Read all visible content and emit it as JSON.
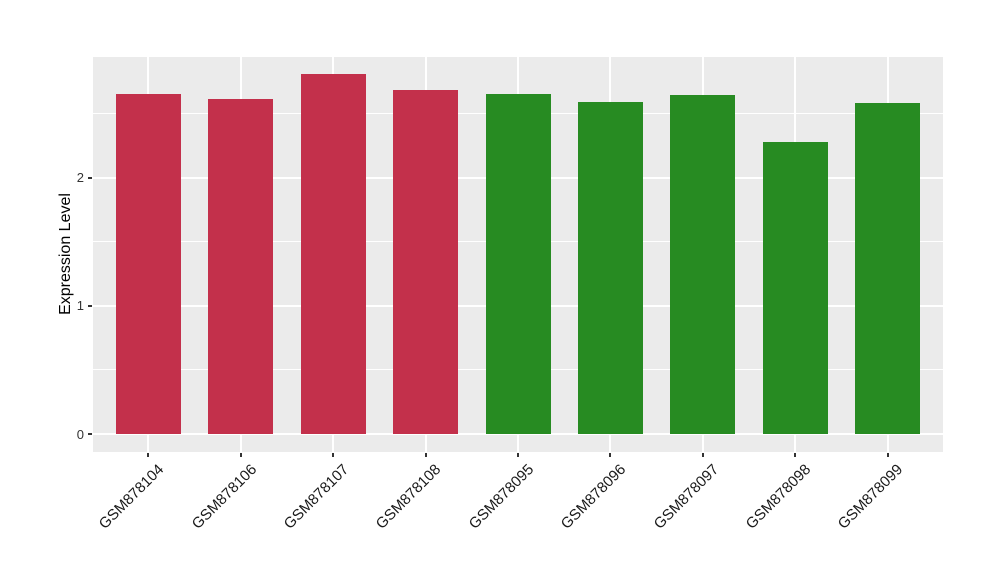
{
  "chart_data": {
    "type": "bar",
    "title": "",
    "xlabel": "",
    "ylabel": "Expression Level",
    "categories": [
      "GSM878104",
      "GSM878106",
      "GSM878107",
      "GSM878108",
      "GSM878095",
      "GSM878096",
      "GSM878097",
      "GSM878098",
      "GSM878099"
    ],
    "values": [
      2.65,
      2.61,
      2.81,
      2.68,
      2.65,
      2.59,
      2.64,
      2.28,
      2.58
    ],
    "bar_color_keys": [
      "red",
      "red",
      "red",
      "red",
      "green",
      "green",
      "green",
      "green",
      "green"
    ],
    "colors": {
      "red": "#C3304B",
      "green": "#278B22"
    },
    "yticks": [
      0,
      1,
      2
    ],
    "ytick_labels": [
      "0",
      "1",
      "2"
    ],
    "yticks_minor": [
      0.5,
      1.5,
      2.5
    ],
    "ylim": [
      -0.14,
      2.94
    ],
    "bar_width_fraction": 0.7,
    "panel_bg": "#EBEBEB",
    "grid_color": "#FFFFFF",
    "grid": "on",
    "legend": "none"
  }
}
